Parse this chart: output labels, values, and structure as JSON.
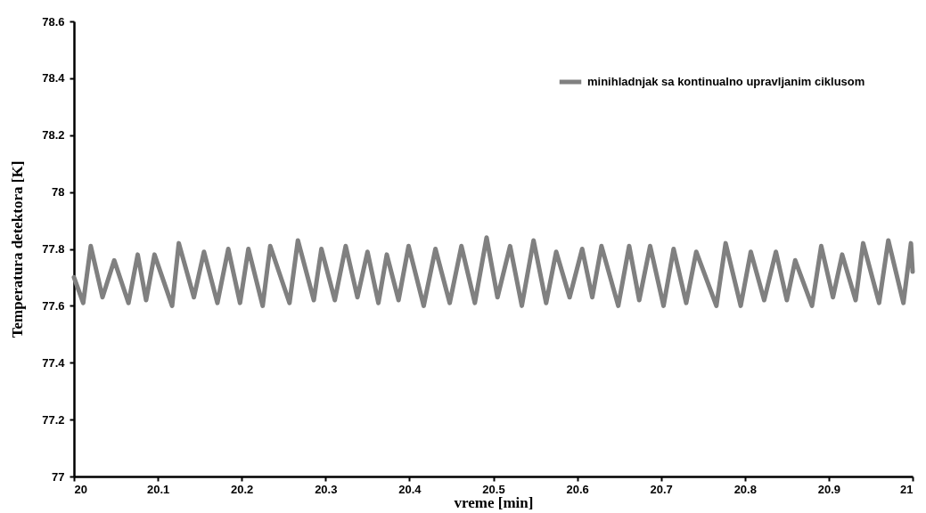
{
  "chart_data": {
    "type": "line",
    "xlabel": "vreme [min]",
    "ylabel": "Temperatura detektora [K]",
    "xlim": [
      20,
      21
    ],
    "xticks": [
      20,
      20.1,
      20.2,
      20.3,
      20.4,
      20.5,
      20.6,
      20.7,
      20.8,
      20.9,
      21
    ],
    "ylim": [
      77,
      78.6
    ],
    "yticks": [
      77,
      77.2,
      77.4,
      77.6,
      77.8,
      78,
      78.2,
      78.4,
      78.6
    ],
    "grid": false,
    "legend": "top right",
    "marker": "none",
    "line_style": "solid",
    "x": [
      20.0,
      20.011,
      20.02,
      20.034,
      20.048,
      20.065,
      20.076,
      20.086,
      20.096,
      20.117,
      20.125,
      20.143,
      20.155,
      20.171,
      20.184,
      20.198,
      20.208,
      20.225,
      20.234,
      20.257,
      20.267,
      20.286,
      20.295,
      20.311,
      20.324,
      20.338,
      20.35,
      20.363,
      20.373,
      20.387,
      20.399,
      20.417,
      20.431,
      20.448,
      20.462,
      20.478,
      20.492,
      20.505,
      20.52,
      20.534,
      20.548,
      20.563,
      20.575,
      20.591,
      20.606,
      20.618,
      20.629,
      20.649,
      20.662,
      20.674,
      20.687,
      20.703,
      20.715,
      20.73,
      20.742,
      20.766,
      20.777,
      20.795,
      20.807,
      20.823,
      20.837,
      20.85,
      20.86,
      20.88,
      20.891,
      20.905,
      20.916,
      20.932,
      20.941,
      20.96,
      20.971,
      20.989,
      20.998,
      21.0
    ],
    "series": [
      {
        "name": "minihladnjak sa kontinualno upravljanim ciklusom",
        "color": "#808080",
        "values": [
          77.7,
          77.61,
          77.81,
          77.63,
          77.76,
          77.61,
          77.78,
          77.62,
          77.78,
          77.6,
          77.82,
          77.63,
          77.79,
          77.61,
          77.8,
          77.61,
          77.8,
          77.6,
          77.81,
          77.61,
          77.83,
          77.62,
          77.8,
          77.62,
          77.81,
          77.63,
          77.79,
          77.61,
          77.78,
          77.62,
          77.81,
          77.6,
          77.8,
          77.61,
          77.81,
          77.61,
          77.84,
          77.63,
          77.81,
          77.6,
          77.83,
          77.61,
          77.79,
          77.63,
          77.8,
          77.63,
          77.81,
          77.6,
          77.81,
          77.62,
          77.81,
          77.6,
          77.8,
          77.61,
          77.79,
          77.6,
          77.82,
          77.6,
          77.79,
          77.62,
          77.79,
          77.62,
          77.76,
          77.6,
          77.81,
          77.63,
          77.78,
          77.62,
          77.82,
          77.61,
          77.83,
          77.61,
          77.82,
          77.72
        ]
      }
    ]
  }
}
